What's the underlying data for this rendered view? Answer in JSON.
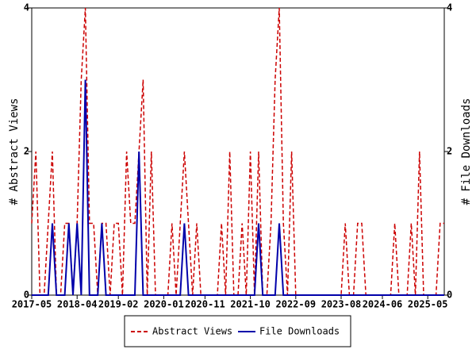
{
  "chart_data": {
    "type": "line",
    "x": [
      "2017-05",
      "2017-06",
      "2017-07",
      "2017-08",
      "2017-09",
      "2017-10",
      "2017-11",
      "2017-12",
      "2018-01",
      "2018-02",
      "2018-03",
      "2018-04",
      "2018-05",
      "2018-06",
      "2018-07",
      "2018-08",
      "2018-09",
      "2018-10",
      "2018-11",
      "2018-12",
      "2019-01",
      "2019-02",
      "2019-03",
      "2019-04",
      "2019-05",
      "2019-06",
      "2019-07",
      "2019-08",
      "2019-09",
      "2019-10",
      "2019-11",
      "2019-12",
      "2020-01",
      "2020-02",
      "2020-03",
      "2020-04",
      "2020-05",
      "2020-06",
      "2020-07",
      "2020-08",
      "2020-09",
      "2020-10",
      "2020-11",
      "2020-12",
      "2021-01",
      "2021-02",
      "2021-03",
      "2021-04",
      "2021-05",
      "2021-06",
      "2021-07",
      "2021-08",
      "2021-09",
      "2021-10",
      "2021-11",
      "2021-12",
      "2022-01",
      "2022-02",
      "2022-03",
      "2022-04",
      "2022-05",
      "2022-06",
      "2022-07",
      "2022-08",
      "2022-09",
      "2022-10",
      "2022-11",
      "2022-12",
      "2023-01",
      "2023-02",
      "2023-03",
      "2023-04",
      "2023-05",
      "2023-06",
      "2023-07",
      "2023-08",
      "2023-09",
      "2023-10",
      "2023-11",
      "2023-12",
      "2024-01",
      "2024-02",
      "2024-03",
      "2024-04",
      "2024-05",
      "2024-06",
      "2024-07",
      "2024-08",
      "2024-09",
      "2024-10",
      "2024-11",
      "2024-12",
      "2025-01",
      "2025-02",
      "2025-03",
      "2025-04",
      "2025-05",
      "2025-06",
      "2025-07",
      "2025-08",
      "2025-09"
    ],
    "series": [
      {
        "name": "Abstract Views",
        "color": "#cc0000",
        "dash": true,
        "values": [
          1,
          2,
          0,
          0,
          1,
          2,
          0,
          0,
          1,
          1,
          0,
          1,
          3,
          4,
          1,
          1,
          0,
          1,
          1,
          0,
          1,
          1,
          0,
          2,
          1,
          1,
          2,
          3,
          0,
          2,
          0,
          0,
          0,
          0,
          1,
          0,
          1,
          2,
          1,
          0,
          1,
          0,
          0,
          0,
          0,
          0,
          1,
          0,
          2,
          0,
          0,
          1,
          0,
          2,
          0,
          2,
          0,
          0,
          1,
          3,
          4,
          1,
          0,
          2,
          0,
          0,
          0,
          0,
          0,
          0,
          0,
          0,
          0,
          0,
          0,
          0,
          1,
          0,
          0,
          1,
          1,
          0,
          0,
          0,
          0,
          0,
          0,
          0,
          1,
          0,
          0,
          0,
          1,
          0,
          2,
          0,
          0,
          0,
          0,
          1,
          1
        ]
      },
      {
        "name": "File Downloads",
        "color": "#0000aa",
        "axis": "y2",
        "values": [
          0,
          0,
          0,
          0,
          0,
          1,
          0,
          0,
          0,
          1,
          0,
          1,
          0,
          3,
          0,
          0,
          0,
          1,
          0,
          0,
          0,
          0,
          0,
          0,
          0,
          0,
          2,
          0,
          0,
          0,
          0,
          0,
          0,
          0,
          0,
          0,
          0,
          1,
          0,
          0,
          0,
          0,
          0,
          0,
          0,
          0,
          0,
          0,
          0,
          0,
          0,
          0,
          0,
          0,
          0,
          1,
          0,
          0,
          0,
          0,
          1,
          0,
          0,
          0,
          0,
          0,
          0,
          0,
          0,
          0,
          0,
          0,
          0,
          0,
          0,
          0,
          0,
          0,
          0,
          0,
          0,
          0,
          0,
          0,
          0,
          0,
          0,
          0,
          0,
          0,
          0,
          0,
          0,
          0,
          0,
          0,
          0,
          0,
          0,
          0,
          0
        ]
      }
    ],
    "xticks": [
      "2017-05",
      "2018-04",
      "2019-02",
      "2020-01",
      "2020-11",
      "2021-10",
      "2022-09",
      "2023-08",
      "2024-06",
      "2025-05"
    ],
    "ylabel": "# Abstract Views",
    "y2label": "# File Downloads",
    "ylim": [
      0,
      4
    ],
    "yticks": [
      0,
      2,
      4
    ],
    "y2lim": [
      0,
      4
    ],
    "y2ticks": [
      0,
      2,
      4
    ],
    "legend": "bottom"
  }
}
